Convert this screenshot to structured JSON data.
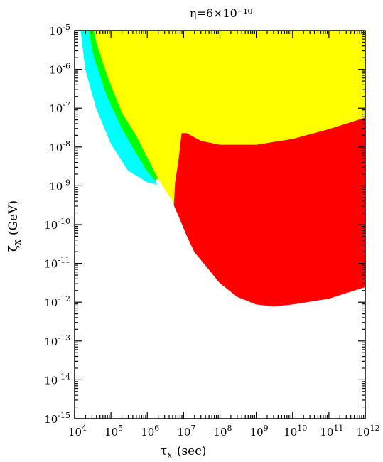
{
  "chart_data": {
    "type": "area",
    "title": "η=6×10⁻¹⁰",
    "xlabel": "τ",
    "xlabel_sub": "X",
    "xlabel_unit": "(sec)",
    "ylabel": "ζ",
    "ylabel_sub": "X",
    "ylabel_unit": "(GeV)",
    "xscale": "log",
    "yscale": "log",
    "xlim": [
      10000,
      1000000000000
    ],
    "ylim": [
      1e-15,
      1e-05
    ],
    "grid": false,
    "x_ticks": [
      {
        "value": 10000.0,
        "base": "10",
        "exp": "4"
      },
      {
        "value": 100000.0,
        "base": "10",
        "exp": "5"
      },
      {
        "value": 1000000.0,
        "base": "10",
        "exp": "6"
      },
      {
        "value": 10000000.0,
        "base": "10",
        "exp": "7"
      },
      {
        "value": 100000000.0,
        "base": "10",
        "exp": "8"
      },
      {
        "value": 1000000000.0,
        "base": "10",
        "exp": "9"
      },
      {
        "value": 10000000000.0,
        "base": "10",
        "exp": "10"
      },
      {
        "value": 100000000000.0,
        "base": "10",
        "exp": "11"
      },
      {
        "value": 1000000000000.0,
        "base": "10",
        "exp": "12"
      }
    ],
    "y_ticks": [
      {
        "value": 1e-05,
        "base": "10",
        "exp": "-5"
      },
      {
        "value": 1e-06,
        "base": "10",
        "exp": "-6"
      },
      {
        "value": 1e-07,
        "base": "10",
        "exp": "-7"
      },
      {
        "value": 1e-08,
        "base": "10",
        "exp": "-8"
      },
      {
        "value": 1e-09,
        "base": "10",
        "exp": "-9"
      },
      {
        "value": 1e-10,
        "base": "10",
        "exp": "-10"
      },
      {
        "value": 1e-11,
        "base": "10",
        "exp": "-11"
      },
      {
        "value": 1e-12,
        "base": "10",
        "exp": "-12"
      },
      {
        "value": 1e-13,
        "base": "10",
        "exp": "-13"
      },
      {
        "value": 1e-14,
        "base": "10",
        "exp": "-14"
      },
      {
        "value": 1e-15,
        "base": "10",
        "exp": "-15"
      }
    ],
    "series": [
      {
        "color": "#00ffff",
        "points": [
          [
            15000,
            1e-05
          ],
          [
            20000,
            1e-06
          ],
          [
            40000,
            1e-07
          ],
          [
            100000,
            1.26e-08
          ],
          [
            300000,
            2.5e-09
          ],
          [
            1000000,
            1.26e-09
          ],
          [
            1800000,
            1.12e-09
          ],
          [
            1600000,
            1.41e-09
          ],
          [
            900000,
            2.82e-09
          ],
          [
            400000,
            1e-08
          ],
          [
            200000,
            3.16e-08
          ],
          [
            80000,
            2e-07
          ],
          [
            35000,
            2e-06
          ],
          [
            25000,
            1e-05
          ]
        ]
      },
      {
        "color": "#00ff00",
        "points": [
          [
            25000,
            1e-05
          ],
          [
            35000,
            2e-06
          ],
          [
            80000,
            2e-07
          ],
          [
            200000,
            3.16e-08
          ],
          [
            400000,
            1e-08
          ],
          [
            900000,
            2.82e-09
          ],
          [
            1600000,
            1.41e-09
          ],
          [
            2000000,
            1.58e-09
          ],
          [
            1200000,
            4e-09
          ],
          [
            500000,
            2e-08
          ],
          [
            200000,
            8e-08
          ],
          [
            80000,
            7e-07
          ],
          [
            40000,
            5e-06
          ],
          [
            35000,
            1e-05
          ]
        ]
      },
      {
        "color": "#ffff00",
        "points": [
          [
            35000,
            1e-05
          ],
          [
            40000,
            5e-06
          ],
          [
            80000,
            7e-07
          ],
          [
            200000,
            8e-08
          ],
          [
            500000,
            2e-08
          ],
          [
            1200000,
            4e-09
          ],
          [
            2000000,
            1.58e-09
          ],
          [
            6000000,
            3.16e-10
          ],
          [
            5500000,
            3.16e-10
          ],
          [
            6000000,
            1.26e-09
          ],
          [
            7500000,
            5e-09
          ],
          [
            9000000,
            2.24e-08
          ],
          [
            12000000,
            2.24e-08
          ],
          [
            30000000,
            1.41e-08
          ],
          [
            100000000,
            1.12e-08
          ],
          [
            1000000000,
            1.12e-08
          ],
          [
            10000000000,
            1.58e-08
          ],
          [
            100000000000,
            2.82e-08
          ],
          [
            1000000000000,
            5.62e-08
          ],
          [
            1000000000000,
            1e-05
          ]
        ]
      },
      {
        "color": "#ff0000",
        "points": [
          [
            5500000,
            3.16e-10
          ],
          [
            6000000,
            1.26e-09
          ],
          [
            7500000,
            5e-09
          ],
          [
            9000000,
            2.24e-08
          ],
          [
            12000000,
            2.24e-08
          ],
          [
            30000000,
            1.41e-08
          ],
          [
            100000000,
            1.12e-08
          ],
          [
            1000000000,
            1.12e-08
          ],
          [
            10000000000,
            1.58e-08
          ],
          [
            100000000000,
            2.82e-08
          ],
          [
            1000000000000,
            5.62e-08
          ],
          [
            1000000000000,
            2.51e-12
          ],
          [
            100000000000,
            1.26e-12
          ],
          [
            10000000000,
            8.91e-13
          ],
          [
            3000000000,
            7.94e-13
          ],
          [
            1000000000,
            8.91e-13
          ],
          [
            300000000,
            1.41e-12
          ],
          [
            100000000,
            3.16e-12
          ],
          [
            50000000,
            7.08e-12
          ],
          [
            20000000,
            2e-11
          ],
          [
            12000000,
            5.62e-11
          ],
          [
            8000000,
            1.41e-10
          ]
        ]
      }
    ]
  }
}
